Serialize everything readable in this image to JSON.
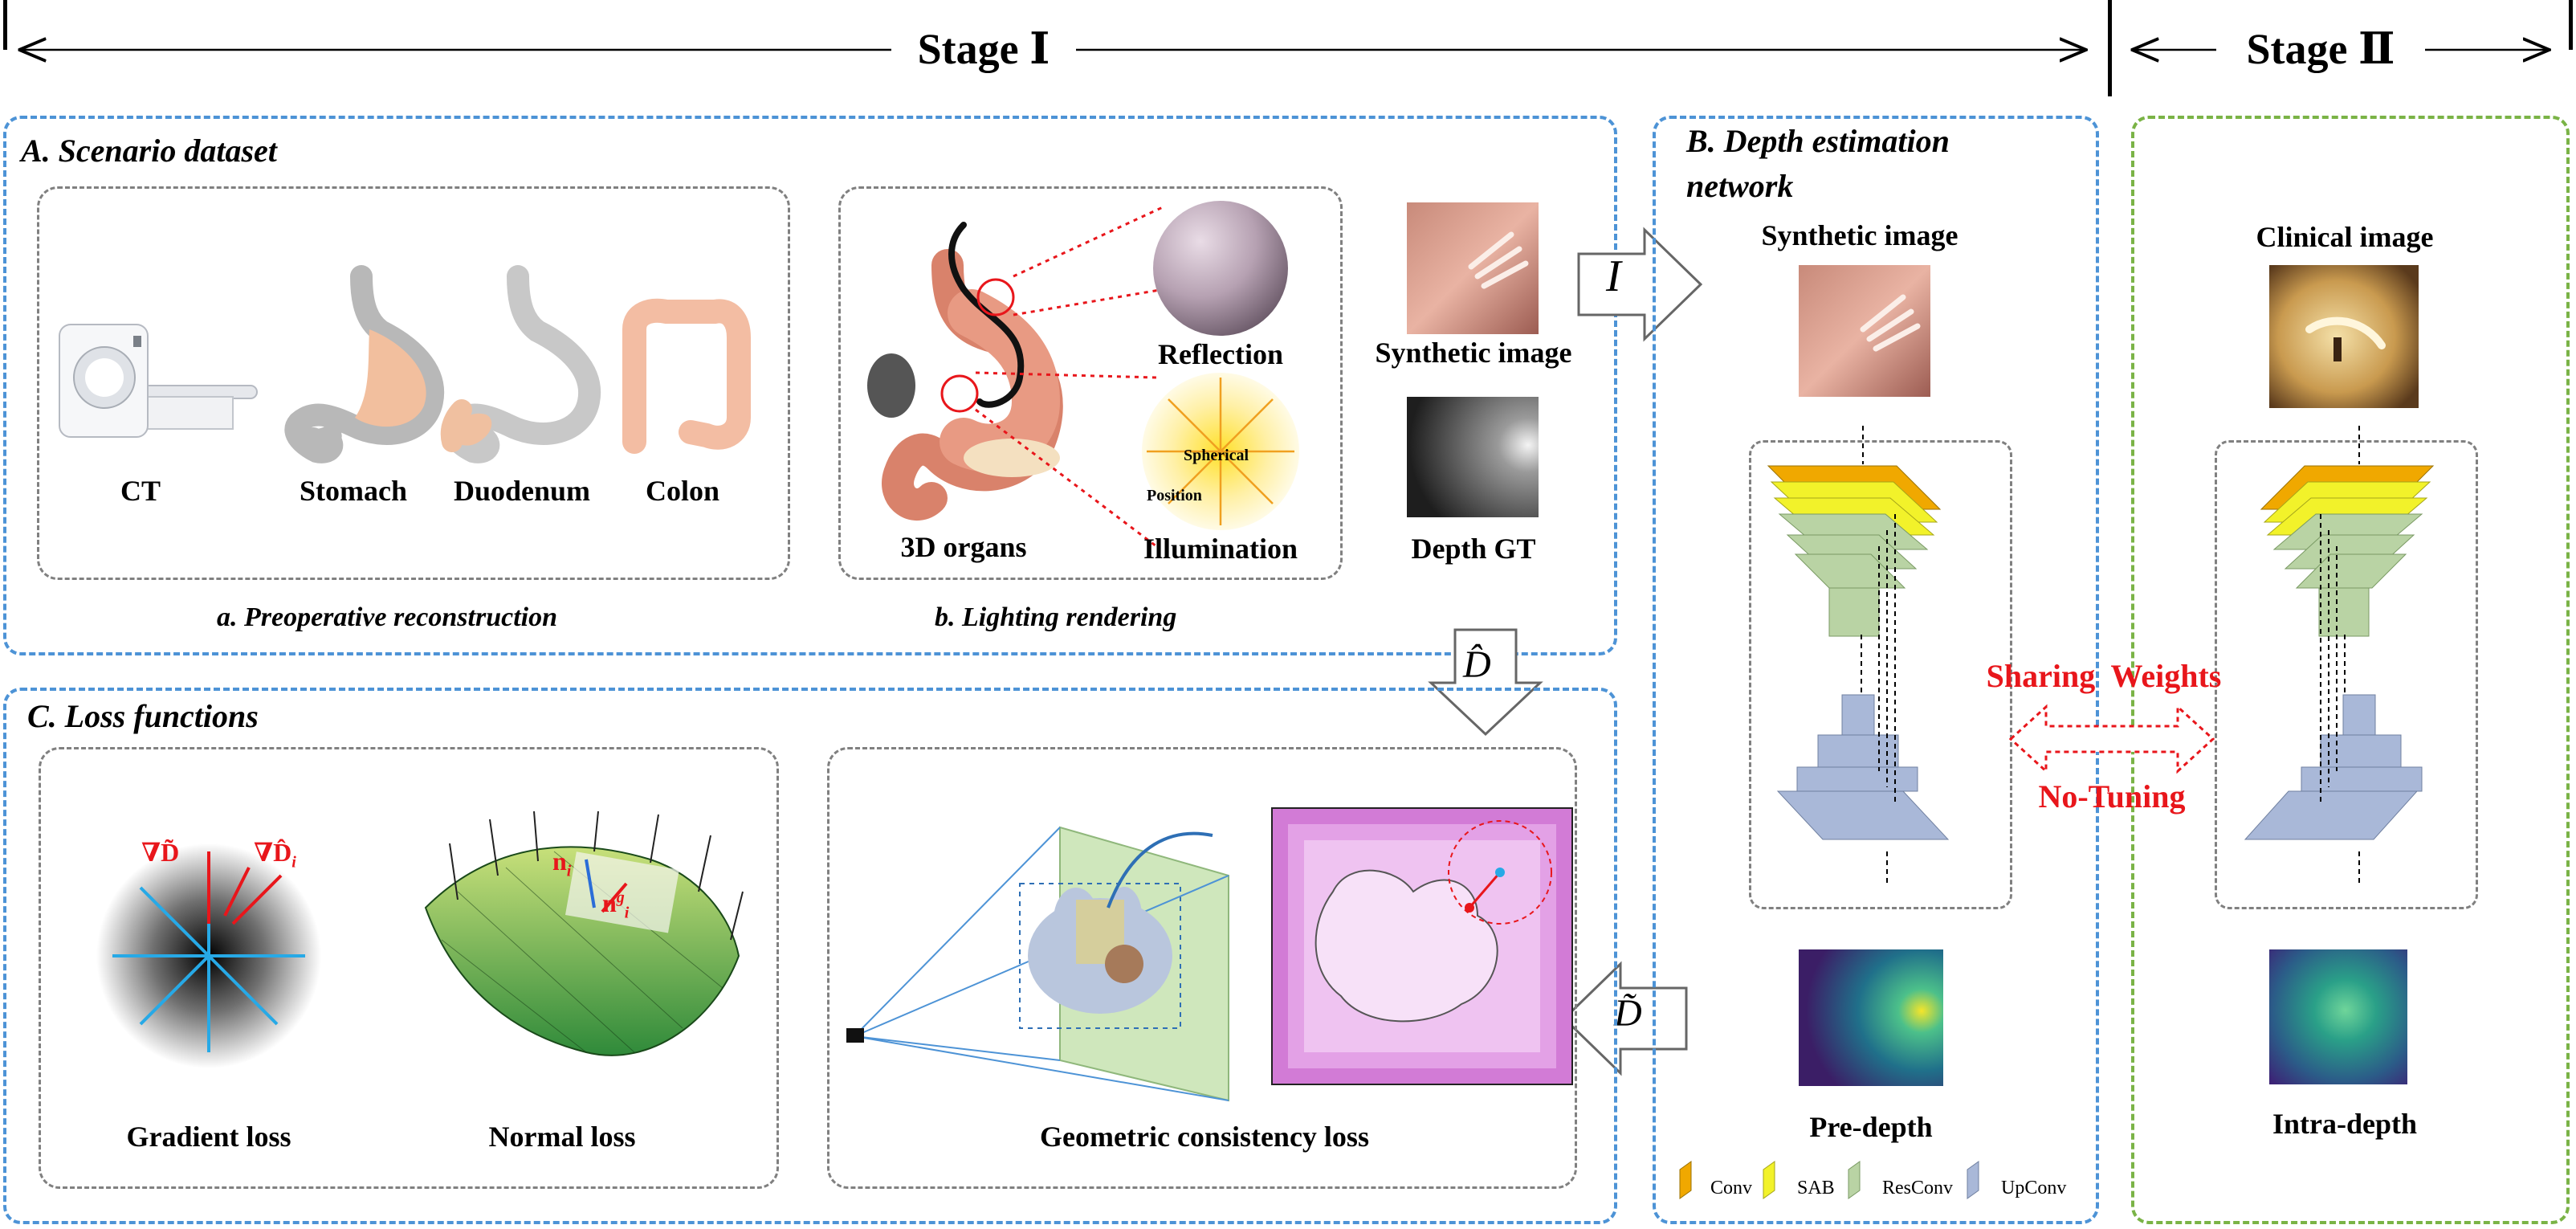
{
  "stages": {
    "stage1": "Stage Ⅰ",
    "stage2": "Stage Ⅱ"
  },
  "sectionA": {
    "title": "A. Scenario dataset",
    "items": [
      "CT",
      "Stomach",
      "Duodenum",
      "Colon",
      "3D organs",
      "Reflection",
      "Illumination",
      "Synthetic image",
      "Depth GT"
    ],
    "sphere_labels": {
      "spherical": "Spherical",
      "position": "Position"
    },
    "sub_a": "a. Preoperative reconstruction",
    "sub_b": "b. Lighting rendering"
  },
  "sectionB": {
    "title_line1": "B. Depth estimation",
    "title_line2": "network",
    "input": "Synthetic image",
    "output": "Pre-depth",
    "legend": [
      "Conv",
      "SAB",
      "ResConv",
      "UpConv"
    ]
  },
  "sectionC": {
    "title": "C. Loss functions",
    "items": [
      "Gradient loss",
      "Normal loss",
      "Geometric consistency loss"
    ],
    "grad_a": "∇D̃",
    "grad_b": "∇D̂",
    "grad_b_sub": "i",
    "normal_a": "n",
    "normal_a_sub": "i",
    "normal_b": "n",
    "normal_b_sup": "g",
    "normal_b_sub": "i"
  },
  "stage2": {
    "input": "Clinical image",
    "output": "Intra-depth"
  },
  "sharing": {
    "line1": "Sharing  Weights",
    "line2": "No-Tuning"
  },
  "arrows": {
    "I": "I",
    "Dhat": "D̂",
    "Dtilde": "D̃"
  },
  "colors": {
    "blue_border": "#4d93d6",
    "green_border": "#7ab346",
    "gray_border": "#808080",
    "accent_red": "#e8161b",
    "conv": "#f0a800",
    "sab": "#f2f22a",
    "resconv": "#b9d3a4",
    "upconv": "#a9b8d8"
  }
}
